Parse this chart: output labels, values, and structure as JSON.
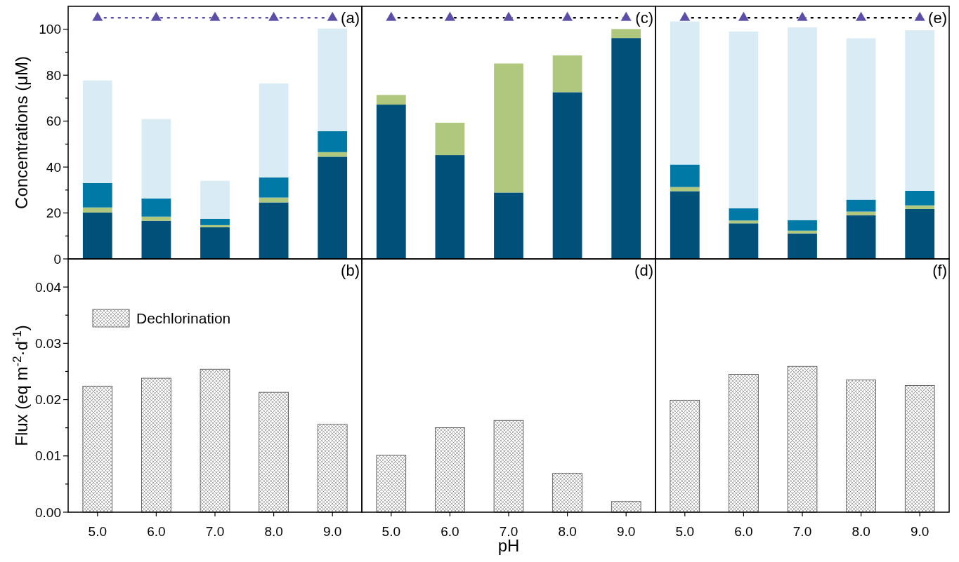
{
  "chart_data": [
    {
      "type": "bar",
      "stacked": true,
      "ylabel": "Concentrations (μM)",
      "annotations": [
        "(a)"
      ],
      "categories": [
        "5.0",
        "6.0",
        "7.0",
        "8.0",
        "9.0"
      ],
      "ylim": [
        0,
        110
      ],
      "yticks": [
        0,
        {
          "value": 10,
          "label": null
        },
        20,
        {
          "value": 30,
          "label": null
        },
        40,
        {
          "value": 50,
          "label": null
        },
        60,
        {
          "value": 70,
          "label": null
        },
        80,
        {
          "value": 90,
          "label": null
        },
        100
      ],
      "tick_labels": "y",
      "grid": false,
      "legend": false,
      "series": [
        {
          "color": "#00507a",
          "values": [
            20.2,
            16.6,
            13.8,
            24.6,
            44.5
          ]
        },
        {
          "color": "#b0c87e",
          "values": [
            2.2,
            1.8,
            0.9,
            2.1,
            2.0
          ]
        },
        {
          "color": "#0079a6",
          "values": [
            10.6,
            7.9,
            2.8,
            8.8,
            9.1
          ]
        },
        {
          "color": "#d9ebf5",
          "values": [
            44.7,
            34.6,
            16.5,
            40.9,
            44.7
          ]
        },
        {
          "type": "line",
          "color": "#5b4ea6",
          "colors": [
            "#5b4ea6",
            "#5b4ea6",
            "#5b4ea6",
            "#5b4ea6",
            "#5b4ea6"
          ],
          "marker": "triangle",
          "line_style": "dotted",
          "values": [
            105,
            105,
            105,
            105,
            105
          ]
        }
      ]
    },
    {
      "type": "bar",
      "stacked": true,
      "annotations": [
        "(c)"
      ],
      "categories": [
        "5.0",
        "6.0",
        "7.0",
        "8.0",
        "9.0"
      ],
      "ylim": [
        0,
        110
      ],
      "yticks": [
        {
          "value": 0,
          "label": null
        },
        {
          "value": 20,
          "label": null
        },
        {
          "value": 40,
          "label": null
        },
        {
          "value": 60,
          "label": null
        },
        {
          "value": 80,
          "label": null
        },
        {
          "value": 100,
          "label": null
        }
      ],
      "tick_labels": false,
      "grid": false,
      "legend": false,
      "series": [
        {
          "color": "#00507a",
          "values": [
            67.2,
            45.2,
            28.9,
            72.6,
            96.2
          ]
        },
        {
          "color": "#b0c87e",
          "values": [
            4.2,
            14.1,
            56.2,
            16.0,
            3.9
          ]
        },
        {
          "type": "line",
          "color": "#000000",
          "colors": [
            "#5b4ea6",
            "#5b4ea6",
            "#5b4ea6",
            "#5b4ea6",
            "#5b4ea6"
          ],
          "marker": "triangle",
          "line_style": "dotted",
          "values": [
            105,
            105,
            105,
            105,
            105
          ]
        }
      ]
    },
    {
      "type": "bar",
      "stacked": true,
      "annotations": [
        "(e)"
      ],
      "categories": [
        "5.0",
        "6.0",
        "7.0",
        "8.0",
        "9.0"
      ],
      "ylim": [
        0,
        110
      ],
      "yticks": [
        {
          "value": 0,
          "label": null
        },
        {
          "value": 20,
          "label": null
        },
        {
          "value": 40,
          "label": null
        },
        {
          "value": 60,
          "label": null
        },
        {
          "value": 80,
          "label": null
        },
        {
          "value": 100,
          "label": null
        }
      ],
      "tick_labels": false,
      "grid": false,
      "legend": false,
      "series": [
        {
          "color": "#00507a",
          "values": [
            29.5,
            15.5,
            11.1,
            19.0,
            21.7
          ]
        },
        {
          "color": "#b0c87e",
          "values": [
            1.8,
            1.2,
            1.2,
            1.6,
            1.6
          ]
        },
        {
          "color": "#0079a6",
          "values": [
            9.8,
            5.3,
            4.6,
            5.2,
            6.4
          ]
        },
        {
          "color": "#d9ebf5",
          "values": [
            62.3,
            77.0,
            83.9,
            70.3,
            69.9
          ]
        },
        {
          "type": "line",
          "color": "#000000",
          "colors": [
            "#5b4ea6",
            "#5b4ea6",
            "#5b4ea6",
            "#5b4ea6",
            "#5b4ea6"
          ],
          "marker": "triangle",
          "line_style": "dotted",
          "values": [
            105,
            105,
            105,
            105,
            105
          ]
        }
      ]
    },
    {
      "type": "bar",
      "ylabel": "Flux (eq m$^{-2}$·d$^{-1}$)",
      "annotations": [
        "(b)"
      ],
      "categories": [
        "5.0",
        "6.0",
        "7.0",
        "8.0",
        "9.0"
      ],
      "ylim": [
        0,
        0.045
      ],
      "yticks": [
        {
          "value": 0,
          "label": "0.00"
        },
        {
          "value": 0.005,
          "label": null
        },
        0.01,
        {
          "value": 0.015,
          "label": null
        },
        0.02,
        {
          "value": 0.025,
          "label": null
        },
        0.03,
        {
          "value": 0.035,
          "label": null
        },
        0.04
      ],
      "grid": false,
      "legend": "top left",
      "series": [
        {
          "name": "Dechlorination",
          "color": "#444444",
          "values": [
            0.0224,
            0.0238,
            0.0254,
            0.0213,
            0.0156
          ]
        }
      ]
    },
    {
      "type": "bar",
      "xlabel": "pH",
      "annotations": [
        "(d)"
      ],
      "categories": [
        "5.0",
        "6.0",
        "7.0",
        "8.0",
        "9.0"
      ],
      "ylim": [
        0,
        0.045
      ],
      "yticks": [
        {
          "value": 0,
          "label": null
        },
        {
          "value": 0.01,
          "label": null
        },
        {
          "value": 0.02,
          "label": null
        },
        {
          "value": 0.03,
          "label": null
        },
        {
          "value": 0.04,
          "label": null
        }
      ],
      "tick_labels": "x",
      "grid": false,
      "legend": false,
      "series": [
        {
          "color": "#444444",
          "values": [
            0.0101,
            0.015,
            0.0163,
            0.0069,
            0.0019
          ]
        }
      ]
    },
    {
      "type": "bar",
      "annotations": [
        "(f)"
      ],
      "categories": [
        "5.0",
        "6.0",
        "7.0",
        "8.0",
        "9.0"
      ],
      "ylim": [
        0,
        0.045
      ],
      "yticks": [
        {
          "value": 0,
          "label": null
        },
        {
          "value": 0.01,
          "label": null
        },
        {
          "value": 0.02,
          "label": null
        },
        {
          "value": 0.03,
          "label": null
        },
        {
          "value": 0.04,
          "label": null
        }
      ],
      "tick_labels": "x",
      "grid": false,
      "legend": false,
      "series": [
        {
          "color": "#444444",
          "values": [
            0.0199,
            0.0245,
            0.0259,
            0.0235,
            0.0225
          ]
        }
      ]
    }
  ]
}
